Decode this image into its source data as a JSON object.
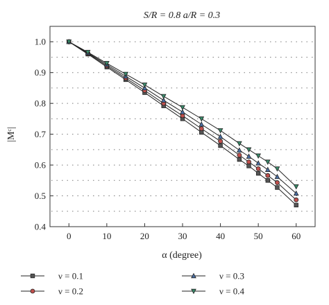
{
  "chart_data": {
    "type": "line",
    "title": "S/R = 0.8   a/R = 0.3",
    "xlabel": "α (degree)",
    "ylabel": "|Mᶜ|",
    "xlim": [
      -5,
      65
    ],
    "ylim": [
      0.4,
      1.05
    ],
    "xticks": [
      0,
      10,
      20,
      30,
      40,
      50,
      60
    ],
    "yticks": [
      0.4,
      0.5,
      0.6,
      0.7,
      0.8,
      0.9,
      1.0
    ],
    "xtick_labels": [
      "0",
      "10",
      "20",
      "30",
      "40",
      "50",
      "60"
    ],
    "ytick_labels": [
      "0.4",
      "0.5",
      "0.6",
      "0.7",
      "0.8",
      "0.9",
      "1.0"
    ],
    "grid": "horizontal-dotted",
    "legend_position": "bottom",
    "x": [
      0,
      5,
      10,
      15,
      20,
      25,
      30,
      35,
      40,
      45,
      47.5,
      50,
      52.5,
      55,
      60
    ],
    "series": [
      {
        "name": "ν = 0.1",
        "marker": "square",
        "color": "#555555",
        "values": [
          1.0,
          0.96,
          0.918,
          0.877,
          0.835,
          0.792,
          0.75,
          0.706,
          0.663,
          0.618,
          0.597,
          0.573,
          0.55,
          0.527,
          0.47
        ]
      },
      {
        "name": "ν = 0.2",
        "marker": "circle",
        "color": "#c0504d",
        "values": [
          1.0,
          0.962,
          0.922,
          0.882,
          0.842,
          0.8,
          0.76,
          0.718,
          0.677,
          0.632,
          0.61,
          0.588,
          0.566,
          0.543,
          0.487
        ]
      },
      {
        "name": "ν = 0.3",
        "marker": "triangle-up",
        "color": "#4a6fa5",
        "values": [
          1.0,
          0.964,
          0.926,
          0.888,
          0.85,
          0.81,
          0.772,
          0.732,
          0.692,
          0.648,
          0.628,
          0.606,
          0.585,
          0.562,
          0.508
        ]
      },
      {
        "name": "ν = 0.4",
        "marker": "triangle-down",
        "color": "#3a8a6a",
        "values": [
          1.0,
          0.966,
          0.93,
          0.895,
          0.86,
          0.823,
          0.787,
          0.75,
          0.712,
          0.67,
          0.65,
          0.63,
          0.61,
          0.588,
          0.53
        ]
      }
    ]
  }
}
